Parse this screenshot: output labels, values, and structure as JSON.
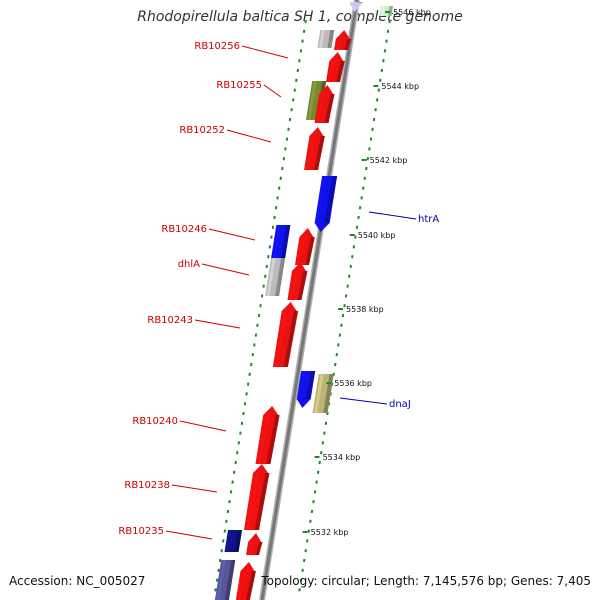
{
  "title": "Rhodopirellula baltica SH 1, complete genome",
  "footer": {
    "accession": "Accession: NC_005027",
    "summary": "Topology: circular; Length: 7,145,576 bp; Genes: 7,405"
  },
  "colors": {
    "red_gene": "#ee1111",
    "blue_gene": "#1111ee",
    "navy_gene": "#111188",
    "gray_gene": "#bbbbbb",
    "olive_gene": "#778833",
    "khaki_gene": "#bbb477",
    "slate_gene": "#555599",
    "pale_green_gene": "#c8eec8",
    "pale_blue_gene": "#c8c8f2",
    "backbone": "#777777",
    "dots": "#228822",
    "left_label": "#cc0000",
    "right_label": "#0000aa"
  },
  "scale_ticks": [
    {
      "kbp": 5546,
      "label": "5546 kbp"
    },
    {
      "kbp": 5544,
      "label": "5544 kbp"
    },
    {
      "kbp": 5542,
      "label": "5542 kbp"
    },
    {
      "kbp": 5540,
      "label": "5540 kbp"
    },
    {
      "kbp": 5538,
      "label": "5538 kbp"
    },
    {
      "kbp": 5536,
      "label": "5536 kbp"
    },
    {
      "kbp": 5534,
      "label": "5534 kbp"
    },
    {
      "kbp": 5532,
      "label": "5532 kbp"
    }
  ],
  "left_labels": [
    {
      "text": "RB10256"
    },
    {
      "text": "RB10255"
    },
    {
      "text": "RB10252"
    },
    {
      "text": "RB10246"
    },
    {
      "text": "dhlA"
    },
    {
      "text": "RB10243"
    },
    {
      "text": "RB10240"
    },
    {
      "text": "RB10238"
    },
    {
      "text": "RB10235"
    }
  ],
  "right_labels": [
    {
      "text": "htrA"
    },
    {
      "text": "dnaJ"
    }
  ]
}
